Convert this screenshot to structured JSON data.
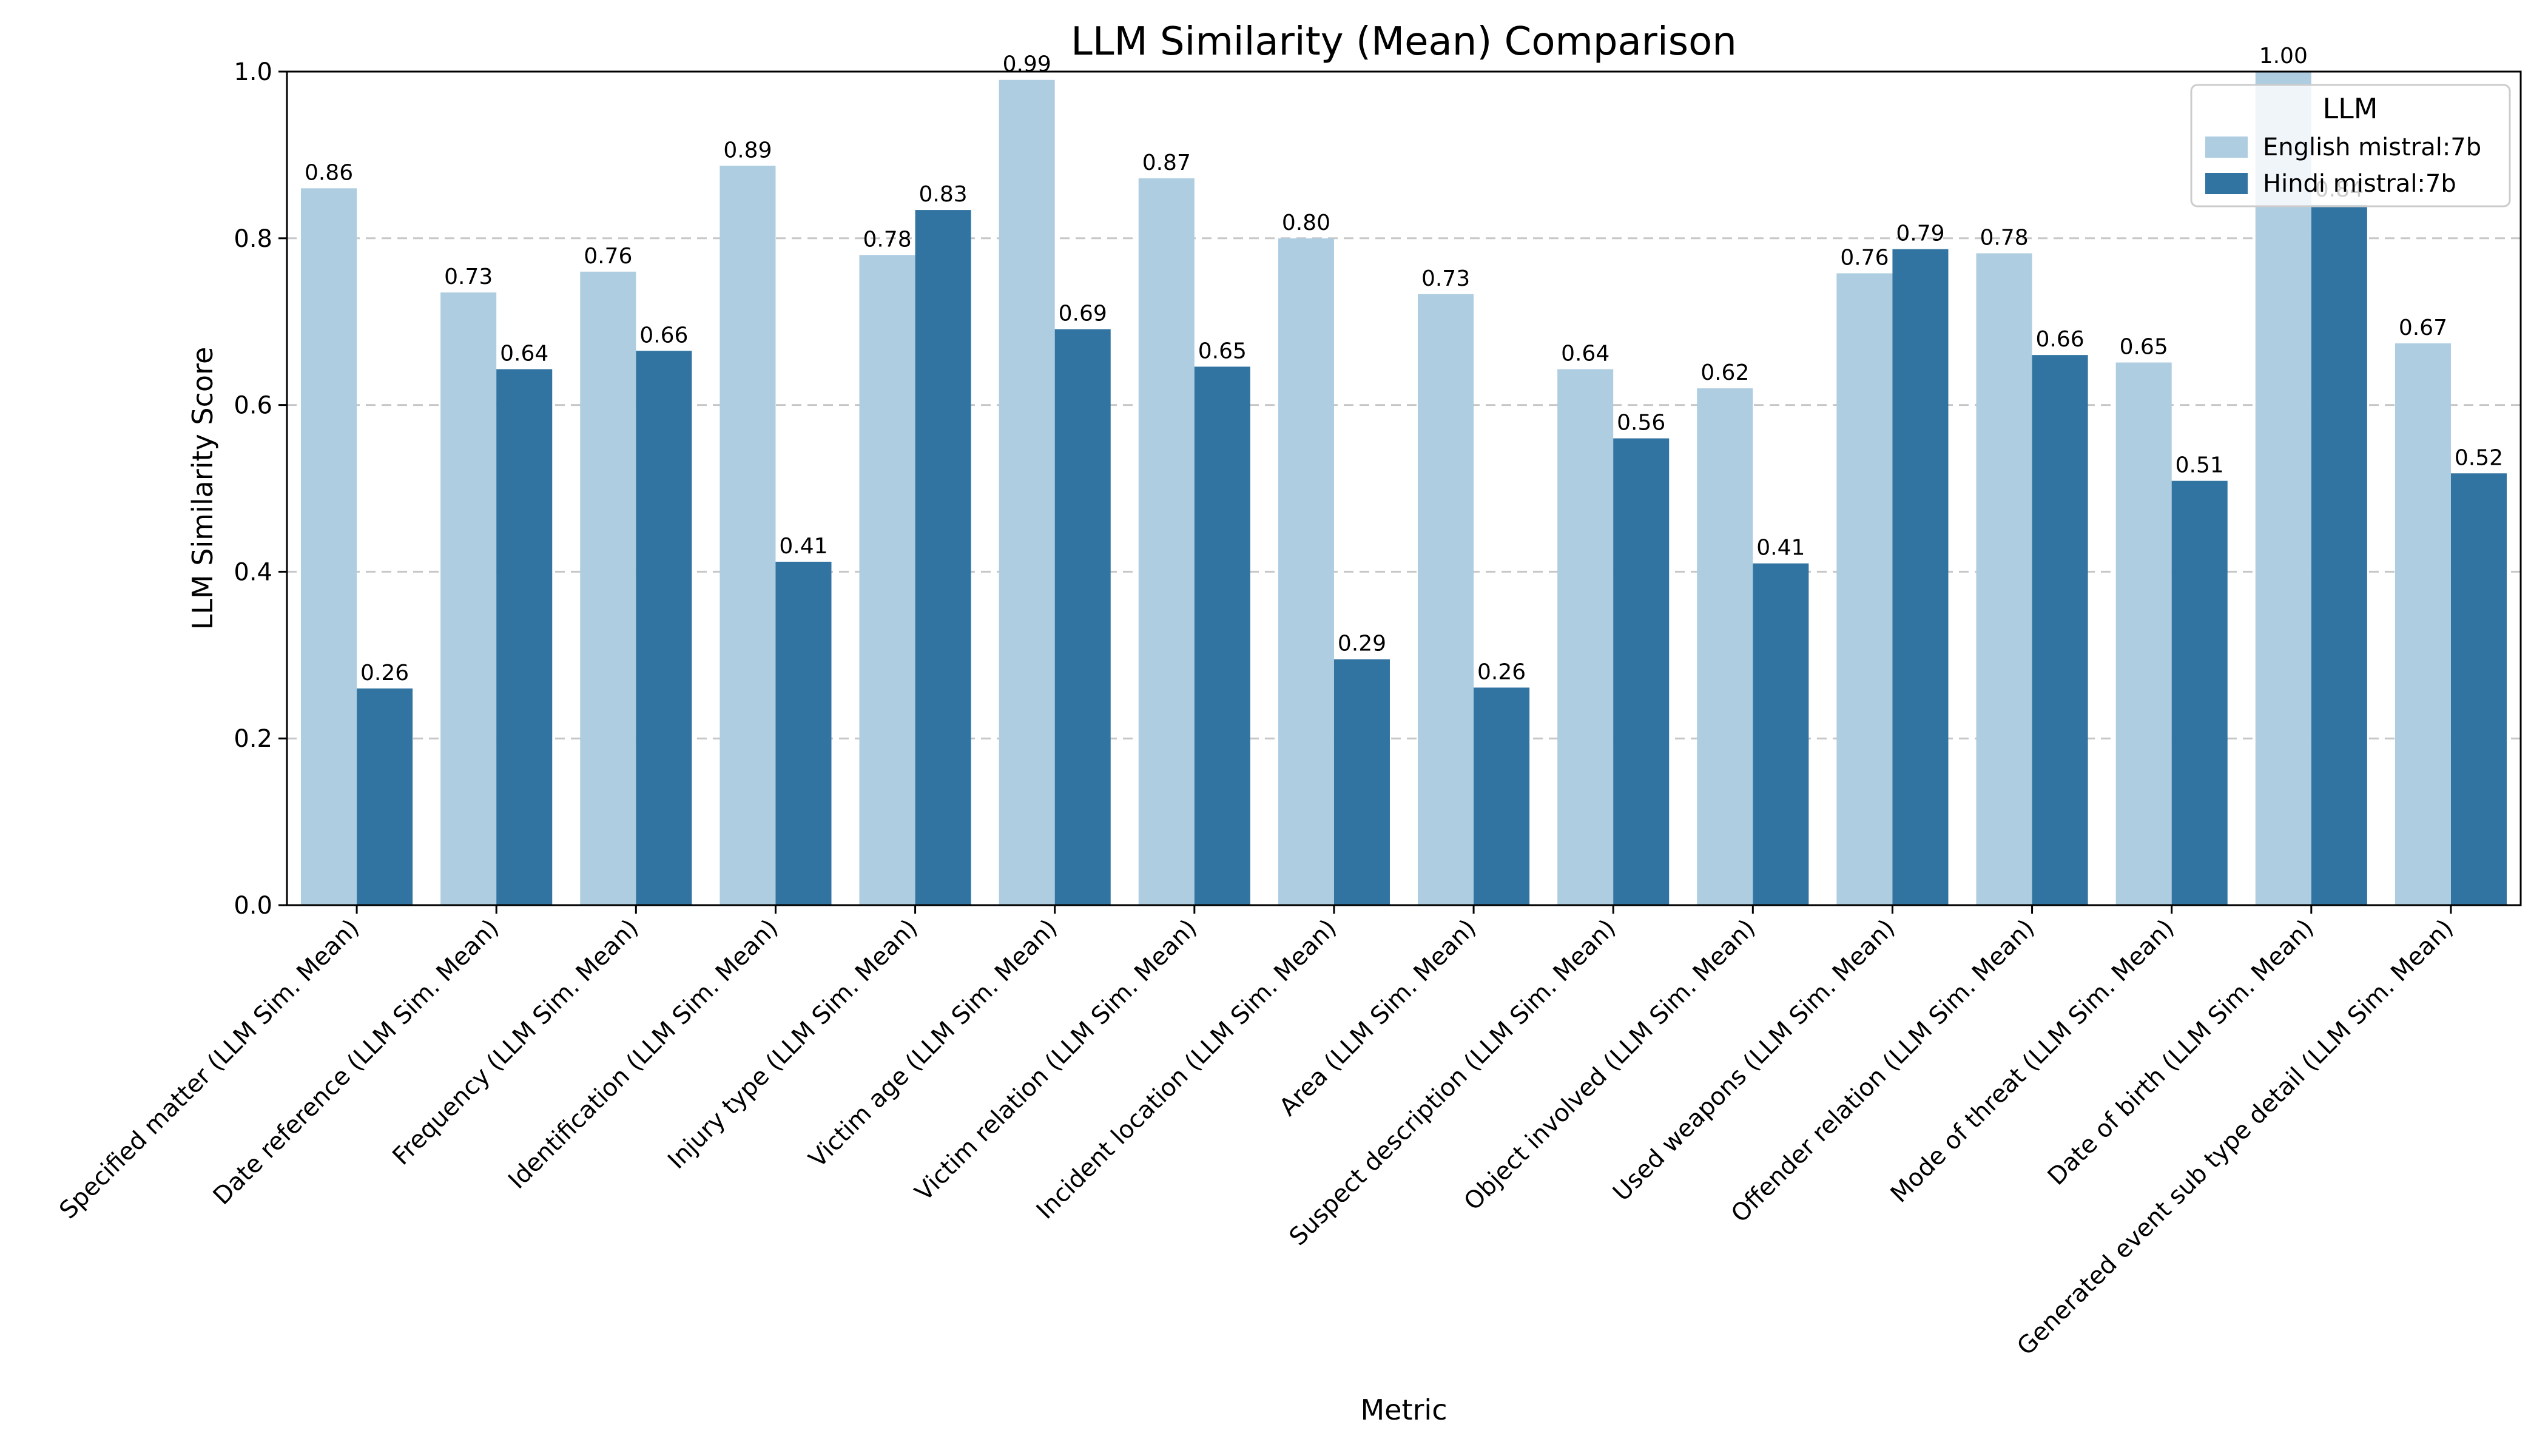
{
  "chart_data": {
    "type": "bar",
    "title": "LLM Similarity (Mean) Comparison",
    "xlabel": "Metric",
    "ylabel": "LLM Similarity Score",
    "ylim": [
      0,
      1.0
    ],
    "yticks": [
      "0.0",
      "0.2",
      "0.4",
      "0.6",
      "0.8",
      "1.0"
    ],
    "grid": "y-dashed",
    "legend": {
      "title": "LLM",
      "placement": "top-right"
    },
    "categories": [
      "Specified matter (LLM Sim. Mean)",
      "Date reference (LLM Sim. Mean)",
      "Frequency (LLM Sim. Mean)",
      "Identification (LLM Sim. Mean)",
      "Injury type (LLM Sim. Mean)",
      "Victim age (LLM Sim. Mean)",
      "Victim relation (LLM Sim. Mean)",
      "Incident location (LLM Sim. Mean)",
      "Area (LLM Sim. Mean)",
      "Suspect description (LLM Sim. Mean)",
      "Object involved (LLM Sim. Mean)",
      "Used weapons (LLM Sim. Mean)",
      "Offender relation (LLM Sim. Mean)",
      "Mode of threat (LLM Sim. Mean)",
      "Date of birth (LLM Sim. Mean)",
      "Generated event sub type detail (LLM Sim. Mean)"
    ],
    "series": [
      {
        "name": "English mistral:7b",
        "color": "#aecde1",
        "values": [
          0.86,
          0.735,
          0.76,
          0.887,
          0.78,
          0.99,
          0.872,
          0.8,
          0.733,
          0.643,
          0.62,
          0.758,
          0.782,
          0.651,
          1.0,
          0.674
        ],
        "labels": [
          "0.86",
          "0.73",
          "0.76",
          "0.89",
          "0.78",
          "0.99",
          "0.87",
          "0.80",
          "0.73",
          "0.64",
          "0.62",
          "0.76",
          "0.78",
          "0.65",
          "1.00",
          "0.67"
        ]
      },
      {
        "name": "Hindi mistral:7b",
        "color": "#3274a1",
        "values": [
          0.26,
          0.643,
          0.665,
          0.412,
          0.834,
          0.691,
          0.646,
          0.295,
          0.261,
          0.56,
          0.41,
          0.787,
          0.66,
          0.509,
          0.84,
          0.518
        ],
        "labels": [
          "0.26",
          "0.64",
          "0.66",
          "0.41",
          "0.83",
          "0.69",
          "0.65",
          "0.29",
          "0.26",
          "0.56",
          "0.41",
          "0.79",
          "0.66",
          "0.51",
          "0.84",
          "0.52"
        ]
      }
    ]
  }
}
